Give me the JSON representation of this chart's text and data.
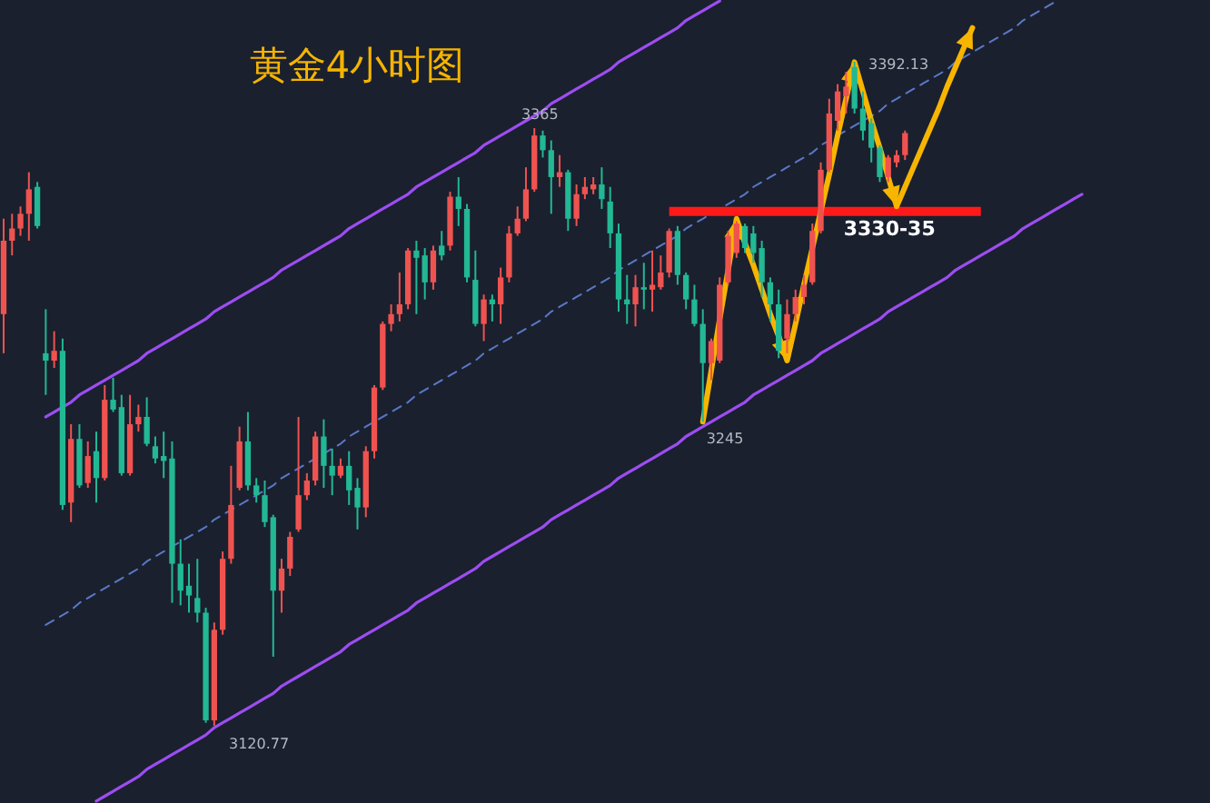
{
  "chart_data": {
    "type": "candlestick",
    "title": "黄金4小时图",
    "tick_labels": false,
    "categories": [
      null,
      null,
      null,
      null,
      null,
      null,
      null,
      null,
      null,
      null,
      null,
      null,
      null,
      null,
      null,
      null,
      null,
      null,
      null,
      null,
      null,
      null,
      null,
      null,
      null,
      null,
      null,
      null,
      null,
      null,
      null,
      null,
      null,
      null,
      null,
      null,
      null,
      null,
      null,
      null,
      null,
      null,
      null,
      null,
      null,
      null,
      null,
      null,
      null,
      null,
      null,
      null,
      null,
      null,
      null,
      null,
      null,
      null,
      null,
      null,
      null,
      null,
      null,
      null,
      null,
      null,
      null,
      null,
      null,
      null,
      null,
      null,
      null,
      null,
      null,
      null,
      null,
      null,
      null,
      null,
      null,
      null,
      null,
      null,
      null,
      null,
      null,
      null,
      null,
      null,
      null,
      null,
      null,
      null,
      null,
      null,
      null,
      null,
      null,
      null,
      null,
      null,
      null,
      null,
      null,
      null,
      null,
      null,
      null,
      null,
      null,
      null,
      null,
      null,
      null,
      null,
      null,
      null,
      null,
      null,
      null,
      null,
      null,
      null,
      null,
      null,
      null,
      null,
      null
    ],
    "ohlc": [
      [
        3289,
        3328,
        3273,
        3319
      ],
      [
        3319,
        3330,
        3313,
        3324
      ],
      [
        3324,
        3333,
        3321,
        3330
      ],
      [
        3330,
        3347,
        3319,
        3340
      ],
      [
        3341,
        3343,
        3324,
        3325
      ],
      [
        3273,
        3291,
        3256,
        3270
      ],
      [
        3270,
        3282,
        3267,
        3274
      ],
      [
        3274,
        3279,
        3209,
        3211
      ],
      [
        3212,
        3244,
        3204,
        3238
      ],
      [
        3238,
        3244,
        3218,
        3219
      ],
      [
        3220,
        3237,
        3218,
        3231
      ],
      [
        3233,
        3241,
        3212,
        3222
      ],
      [
        3222,
        3260,
        3221,
        3254
      ],
      [
        3254,
        3263,
        3249,
        3250
      ],
      [
        3251,
        3256,
        3223,
        3224
      ],
      [
        3224,
        3256,
        3223,
        3244
      ],
      [
        3244,
        3252,
        3241,
        3247
      ],
      [
        3247,
        3255,
        3235,
        3236
      ],
      [
        3235,
        3239,
        3228,
        3230
      ],
      [
        3231,
        3241,
        3222,
        3229
      ],
      [
        3230,
        3237,
        3171,
        3187
      ],
      [
        3187,
        3197,
        3170,
        3176
      ],
      [
        3178,
        3187,
        3167,
        3174
      ],
      [
        3173,
        3189,
        3163,
        3167
      ],
      [
        3167,
        3169,
        3122,
        3123
      ],
      [
        3123,
        3163,
        3120.77,
        3160
      ],
      [
        3160,
        3192,
        3158,
        3189
      ],
      [
        3189,
        3227,
        3187,
        3211
      ],
      [
        3218,
        3243,
        3217,
        3237
      ],
      [
        3237,
        3249,
        3217,
        3219
      ],
      [
        3219,
        3222,
        3212,
        3215
      ],
      [
        3215,
        3221,
        3202,
        3204
      ],
      [
        3206,
        3207,
        3149,
        3176
      ],
      [
        3176,
        3189,
        3167,
        3185
      ],
      [
        3185,
        3200,
        3182,
        3198
      ],
      [
        3201,
        3247,
        3200,
        3215
      ],
      [
        3215,
        3224,
        3213,
        3221
      ],
      [
        3221,
        3241,
        3219,
        3239
      ],
      [
        3239,
        3246,
        3218,
        3227
      ],
      [
        3227,
        3234,
        3215,
        3223
      ],
      [
        3223,
        3230,
        3222,
        3227
      ],
      [
        3227,
        3233,
        3211,
        3217
      ],
      [
        3218,
        3222,
        3201,
        3210
      ],
      [
        3210,
        3235,
        3206,
        3233
      ],
      [
        3233,
        3260,
        3230,
        3259
      ],
      [
        3259,
        3286,
        3258,
        3285
      ],
      [
        3285,
        3293,
        3282,
        3289
      ],
      [
        3289,
        3306,
        3286,
        3293
      ],
      [
        3293,
        3316,
        3291,
        3315
      ],
      [
        3315,
        3319,
        3289,
        3312
      ],
      [
        3313,
        3316,
        3295,
        3302
      ],
      [
        3302,
        3317,
        3299,
        3315
      ],
      [
        3317,
        3323,
        3311,
        3313
      ],
      [
        3317,
        3339,
        3315,
        3337
      ],
      [
        3337,
        3345,
        3325,
        3332
      ],
      [
        3332,
        3334,
        3302,
        3304
      ],
      [
        3303,
        3315,
        3284,
        3285
      ],
      [
        3285,
        3297,
        3278,
        3295
      ],
      [
        3295,
        3297,
        3286,
        3293
      ],
      [
        3293,
        3308,
        3285,
        3304
      ],
      [
        3304,
        3325,
        3302,
        3322
      ],
      [
        3322,
        3333,
        3321,
        3328
      ],
      [
        3328,
        3349,
        3327,
        3340
      ],
      [
        3340,
        3365,
        3339,
        3362
      ],
      [
        3362,
        3364,
        3353,
        3356
      ],
      [
        3356,
        3360,
        3330,
        3345
      ],
      [
        3345,
        3354,
        3341,
        3347
      ],
      [
        3347,
        3348,
        3323,
        3328
      ],
      [
        3328,
        3342,
        3325,
        3338
      ],
      [
        3338,
        3345,
        3336,
        3341
      ],
      [
        3340,
        3345,
        3338,
        3342
      ],
      [
        3342,
        3349,
        3332,
        3336
      ],
      [
        3335,
        3341,
        3316,
        3322
      ],
      [
        3322,
        3326,
        3290,
        3295
      ],
      [
        3295,
        3305,
        3285,
        3293
      ],
      [
        3293,
        3305,
        3284,
        3300
      ],
      [
        3300,
        3310,
        3291,
        3299
      ],
      [
        3299,
        3315,
        3290,
        3301
      ],
      [
        3300,
        3313,
        3299,
        3306
      ],
      [
        3306,
        3324,
        3304,
        3323
      ],
      [
        3323,
        3325,
        3301,
        3305
      ],
      [
        3305,
        3306,
        3291,
        3295
      ],
      [
        3295,
        3301,
        3284,
        3285
      ],
      [
        3285,
        3291,
        3245,
        3269
      ],
      [
        3269,
        3279,
        3262,
        3278
      ],
      [
        3270,
        3304,
        3269,
        3301
      ],
      [
        3302,
        3323,
        3301,
        3321
      ],
      [
        3314,
        3327,
        3312,
        3326
      ],
      [
        3325,
        3326,
        3314,
        3316
      ],
      [
        3322,
        3325,
        3310,
        3314
      ],
      [
        3316,
        3319,
        3296,
        3302
      ],
      [
        3302,
        3304,
        3286,
        3293
      ],
      [
        3293,
        3299,
        3271,
        3274
      ],
      [
        3279,
        3295,
        3273,
        3289
      ],
      [
        3289,
        3299,
        3286,
        3296
      ],
      [
        3296,
        3305,
        3293,
        3301
      ],
      [
        3302,
        3326,
        3301,
        3323
      ],
      [
        3323,
        3351,
        3322,
        3348
      ],
      [
        3348,
        3377,
        3347,
        3371
      ],
      [
        3368,
        3383,
        3364,
        3380
      ],
      [
        3378,
        3388,
        3371,
        3382
      ],
      [
        3390,
        3392.13,
        3371,
        3373
      ],
      [
        3373,
        3380,
        3360,
        3364
      ],
      [
        3367,
        3369,
        3351,
        3357
      ],
      [
        3357,
        3358,
        3343,
        3345
      ],
      [
        3345,
        3354,
        3343,
        3353
      ],
      [
        3351,
        3356,
        3349,
        3354
      ],
      [
        3354,
        3364,
        3352,
        3363
      ],
      null,
      null,
      null,
      null,
      null,
      null,
      null,
      null,
      null,
      null,
      null,
      null,
      null,
      null,
      null,
      null,
      null,
      null,
      null,
      null,
      null
    ],
    "colors": [
      "#ef5350",
      "#ef5350",
      "#ef5350",
      "#ef5350",
      "#22b894",
      "#22b894",
      "#ef5350",
      "#22b894",
      "#ef5350",
      "#22b894",
      "#ef5350",
      "#22b894",
      "#ef5350",
      "#22b894",
      "#22b894",
      "#ef5350",
      "#ef5350",
      "#22b894",
      "#22b894",
      "#22b894",
      "#22b894",
      "#22b894",
      "#22b894",
      "#22b894",
      "#22b894",
      "#ef5350",
      "#ef5350",
      "#ef5350",
      "#ef5350",
      "#22b894",
      "#22b894",
      "#22b894",
      "#22b894",
      "#ef5350",
      "#ef5350",
      "#ef5350",
      "#ef5350",
      "#ef5350",
      "#22b894",
      "#22b894",
      "#ef5350",
      "#22b894",
      "#22b894",
      "#ef5350",
      "#ef5350",
      "#ef5350",
      "#ef5350",
      "#ef5350",
      "#ef5350",
      "#22b894",
      "#22b894",
      "#ef5350",
      "#22b894",
      "#ef5350",
      "#22b894",
      "#22b894",
      "#22b894",
      "#ef5350",
      "#22b894",
      "#ef5350",
      "#ef5350",
      "#ef5350",
      "#ef5350",
      "#ef5350",
      "#22b894",
      "#22b894",
      "#ef5350",
      "#22b894",
      "#ef5350",
      "#ef5350",
      "#ef5350",
      "#22b894",
      "#22b894",
      "#22b894",
      "#22b894",
      "#ef5350",
      "#22b894",
      "#ef5350",
      "#ef5350",
      "#ef5350",
      "#22b894",
      "#22b894",
      "#22b894",
      "#22b894",
      "#ef5350",
      "#ef5350",
      "#ef5350",
      "#ef5350",
      "#22b894",
      "#22b894",
      "#22b894",
      "#22b894",
      "#22b894",
      "#ef5350",
      "#ef5350",
      "#ef5350",
      "#ef5350",
      "#ef5350",
      "#ef5350",
      "#ef5350",
      "#ef5350",
      "#22b894",
      "#22b894",
      "#22b894",
      "#22b894",
      "#ef5350",
      "#ef5350",
      "#ef5350",
      null,
      null,
      null,
      null,
      null,
      null,
      null,
      null,
      null,
      null,
      null,
      null,
      null,
      null,
      null,
      null,
      null,
      null,
      null,
      null,
      null
    ],
    "series": [
      {
        "type": "line",
        "color": "#9d4df2",
        "values": [
          null,
          null,
          null,
          null,
          null,
          3247,
          3249,
          3251,
          3253,
          3256,
          3258,
          3260,
          3262,
          3264,
          3266,
          3268,
          3270,
          3273,
          3275,
          3277,
          3279,
          3281,
          3283,
          3285,
          3287,
          3290,
          3292,
          3294,
          3296,
          3298,
          3300,
          3302,
          3304,
          3307,
          3309,
          3311,
          3313,
          3315,
          3317,
          3319,
          3321,
          3324,
          3326,
          3328,
          3330,
          3332,
          3334,
          3336,
          3338,
          3341,
          3343,
          3345,
          3347,
          3349,
          3351,
          3353,
          3355,
          3358,
          3360,
          3362,
          3364,
          3366,
          3368,
          3370,
          3372,
          3375,
          3377,
          3379,
          3381,
          3383,
          3385,
          3387,
          3389,
          3392,
          3394,
          3396,
          3398,
          3400,
          3402,
          3404,
          3406,
          3409,
          3411,
          3413,
          3415,
          3417,
          null,
          null,
          null,
          null,
          null,
          null,
          null,
          null,
          null,
          null,
          null,
          null,
          null,
          null,
          null,
          null,
          null,
          null,
          null,
          null,
          null,
          null,
          null,
          null,
          null,
          null,
          null,
          null,
          null,
          null,
          null,
          null,
          null,
          null,
          null,
          null,
          null,
          null,
          null,
          null,
          null,
          null,
          null
        ]
      },
      {
        "type": "line",
        "color": "#9d4df2",
        "values": [
          null,
          null,
          null,
          null,
          null,
          null,
          null,
          null,
          null,
          null,
          null,
          3090,
          3092,
          3094,
          3096,
          3098,
          3100,
          3103,
          3105,
          3107,
          3109,
          3111,
          3113,
          3115,
          3117,
          3120,
          3122,
          3124,
          3126,
          3128,
          3130,
          3132,
          3134,
          3137,
          3139,
          3141,
          3143,
          3145,
          3147,
          3149,
          3151,
          3154,
          3156,
          3158,
          3160,
          3162,
          3164,
          3166,
          3168,
          3171,
          3173,
          3175,
          3177,
          3179,
          3181,
          3183,
          3185,
          3188,
          3190,
          3192,
          3194,
          3196,
          3198,
          3200,
          3202,
          3205,
          3207,
          3209,
          3211,
          3213,
          3215,
          3217,
          3219,
          3222,
          3224,
          3226,
          3228,
          3230,
          3232,
          3234,
          3236,
          3239,
          3241,
          3243,
          3245,
          3247,
          3249,
          3251,
          3253,
          3256,
          3258,
          3260,
          3262,
          3264,
          3266,
          3268,
          3270,
          3273,
          3275,
          3277,
          3279,
          3281,
          3283,
          3285,
          3287,
          3290,
          3292,
          3294,
          3296,
          3298,
          3300,
          3302,
          3304,
          3307,
          3309,
          3311,
          3313,
          3315,
          3317,
          3319,
          3321,
          3324,
          3326,
          3328,
          3330,
          3332,
          3334,
          3336,
          3338
        ]
      },
      {
        "type": "line",
        "color": "#5a78c8",
        "line_style": "dashed",
        "values": [
          null,
          null,
          null,
          null,
          null,
          3162,
          3164,
          3166,
          3168,
          3171,
          3173,
          3175,
          3177,
          3179,
          3181,
          3183,
          3185,
          3188,
          3190,
          3192,
          3194,
          3196,
          3198,
          3200,
          3202,
          3205,
          3207,
          3209,
          3211,
          3213,
          3215,
          3217,
          3219,
          3222,
          3224,
          3226,
          3228,
          3230,
          3232,
          3234,
          3236,
          3239,
          3241,
          3243,
          3245,
          3247,
          3249,
          3251,
          3253,
          3256,
          3258,
          3260,
          3262,
          3264,
          3266,
          3268,
          3270,
          3273,
          3275,
          3277,
          3279,
          3281,
          3283,
          3285,
          3287,
          3290,
          3292,
          3294,
          3296,
          3298,
          3300,
          3302,
          3304,
          3307,
          3309,
          3311,
          3313,
          3315,
          3317,
          3319,
          3321,
          3324,
          3326,
          3328,
          3330,
          3332,
          3334,
          3336,
          3338,
          3341,
          3343,
          3345,
          3347,
          3349,
          3351,
          3353,
          3355,
          3358,
          3360,
          3362,
          3364,
          3366,
          3368,
          3370,
          3372,
          3375,
          3377,
          3379,
          3381,
          3383,
          3385,
          3387,
          3389,
          3392,
          3394,
          3396,
          3398,
          3400,
          3402,
          3404,
          3406,
          3409,
          3411,
          3413,
          3415,
          3417,
          null,
          null,
          null
        ]
      },
      {
        "type": "line",
        "name": "3330-35",
        "color": "#ff1a1a",
        "values": [
          null,
          null,
          null,
          null,
          null,
          null,
          null,
          null,
          null,
          null,
          null,
          null,
          null,
          null,
          null,
          null,
          null,
          null,
          null,
          null,
          null,
          null,
          null,
          null,
          null,
          null,
          null,
          null,
          null,
          null,
          null,
          null,
          null,
          null,
          null,
          null,
          null,
          null,
          null,
          null,
          null,
          null,
          null,
          null,
          null,
          null,
          null,
          null,
          null,
          null,
          null,
          null,
          null,
          null,
          null,
          null,
          null,
          null,
          null,
          null,
          null,
          null,
          null,
          null,
          null,
          null,
          null,
          null,
          null,
          null,
          null,
          null,
          null,
          null,
          null,
          null,
          null,
          null,
          null,
          3331,
          3331,
          3331,
          3331,
          3331,
          3331,
          3331,
          3331,
          3331,
          3331,
          3331,
          3331,
          3331,
          3331,
          3331,
          3331,
          3331,
          3331,
          3331,
          3331,
          3331,
          3331,
          3331,
          3331,
          3331,
          3331,
          3331,
          3331,
          3331,
          3331,
          3331,
          3331,
          3331,
          3331,
          3331,
          3331,
          3331,
          3331,
          null,
          null,
          null,
          null,
          null,
          null,
          null,
          null,
          null,
          null,
          null,
          null
        ]
      },
      {
        "type": "line",
        "color": "#f7b500",
        "values": [
          null,
          null,
          null,
          null,
          null,
          null,
          null,
          null,
          null,
          null,
          null,
          null,
          null,
          null,
          null,
          null,
          null,
          null,
          null,
          null,
          null,
          null,
          null,
          null,
          null,
          null,
          null,
          null,
          null,
          null,
          null,
          null,
          null,
          null,
          null,
          null,
          null,
          null,
          null,
          null,
          null,
          null,
          null,
          null,
          null,
          null,
          null,
          null,
          null,
          null,
          null,
          null,
          null,
          null,
          null,
          null,
          null,
          null,
          null,
          null,
          null,
          null,
          null,
          null,
          null,
          null,
          null,
          null,
          null,
          null,
          null,
          null,
          null,
          null,
          null,
          null,
          null,
          null,
          null,
          null,
          null,
          null,
          null,
          3245,
          3266,
          3287,
          3307,
          3328,
          3318,
          3309,
          3299,
          3289,
          3280,
          3270,
          3285,
          3301,
          3316,
          3331,
          3346,
          3362,
          3377,
          3392,
          3380,
          3368,
          3357,
          3345,
          3333,
          3341,
          3349,
          3357,
          3365,
          3373,
          3382,
          3390,
          3398,
          3406,
          null,
          null,
          null,
          null,
          null,
          null,
          null,
          null,
          null,
          null,
          null,
          null,
          null
        ]
      }
    ],
    "annotations": [
      {
        "text": "3365",
        "y": 3365
      },
      "3392.13",
      {
        "text": "3245",
        "y": 3245
      },
      "3120.77"
    ]
  }
}
